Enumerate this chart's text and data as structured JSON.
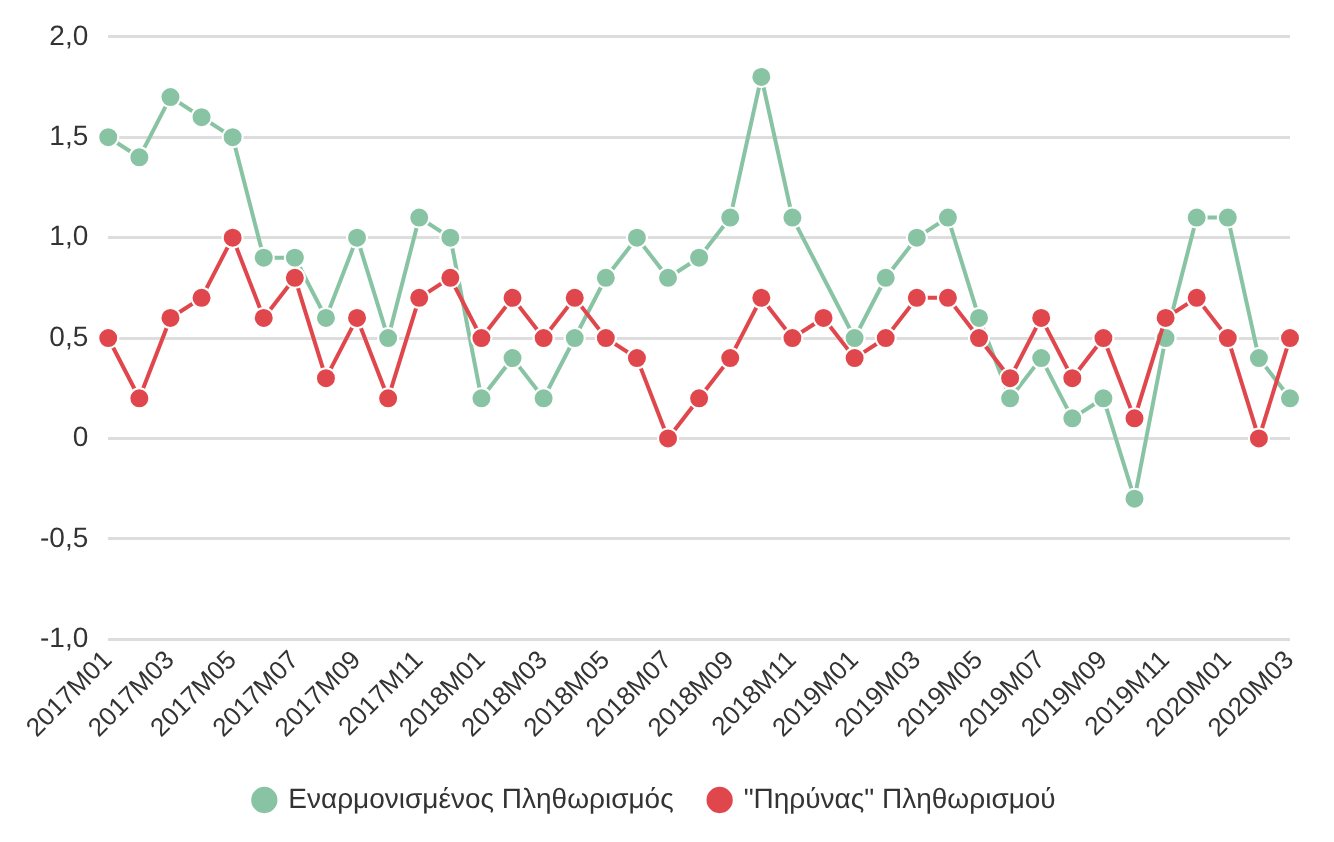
{
  "chart_data": {
    "type": "line",
    "categories": [
      "2017M01",
      null,
      "2017M03",
      null,
      "2017M05",
      null,
      "2017M07",
      null,
      "2017M09",
      null,
      "2017M11",
      null,
      "2018M01",
      null,
      "2018M03",
      null,
      "2018M05",
      null,
      "2018M07",
      null,
      "2018M09",
      null,
      "2018M11",
      null,
      "2019M01",
      null,
      "2019M03",
      null,
      "2019M05",
      null,
      "2019M07",
      null,
      "2019M09",
      null,
      "2019M11",
      null,
      "2020M01",
      null,
      "2020M03"
    ],
    "series": [
      {
        "name": "Εναρμονισμένος Πληθωρισμός",
        "color": "#88c4a4",
        "values": [
          1.5,
          1.4,
          1.7,
          1.6,
          1.5,
          0.9,
          0.9,
          0.6,
          1.0,
          0.5,
          1.1,
          1.0,
          0.2,
          0.4,
          0.2,
          0.5,
          0.8,
          1.0,
          0.8,
          0.9,
          1.1,
          1.8,
          1.1,
          null,
          0.5,
          0.8,
          1.0,
          1.1,
          0.6,
          0.2,
          0.4,
          0.1,
          0.2,
          -0.3,
          0.5,
          1.1,
          1.1,
          0.4,
          0.2
        ]
      },
      {
        "name": "\"Πηρύνας\" Πληθωρισμού",
        "color": "#e0474c",
        "values": [
          0.5,
          0.2,
          0.6,
          0.7,
          1.0,
          0.6,
          0.8,
          0.3,
          0.6,
          0.2,
          0.7,
          0.8,
          0.5,
          0.7,
          0.5,
          0.7,
          0.5,
          0.4,
          0.0,
          0.2,
          0.4,
          0.7,
          0.5,
          0.6,
          0.4,
          0.5,
          0.7,
          0.7,
          0.5,
          0.3,
          0.6,
          0.3,
          0.5,
          0.1,
          0.6,
          0.7,
          0.5,
          0.0,
          0.5
        ]
      }
    ],
    "ylim": [
      -1,
      2
    ],
    "yticks": [
      {
        "value": -1,
        "label": "-1,0"
      },
      {
        "value": -0.5,
        "label": "-0,5"
      },
      0,
      {
        "value": 0.5,
        "label": "0,5"
      },
      {
        "value": 1,
        "label": "1,0"
      },
      {
        "value": 1.5,
        "label": "1,5"
      },
      {
        "value": 2,
        "label": "2,0"
      }
    ],
    "grid": "y",
    "legend": "bottom",
    "marker": "circle",
    "line_style": "solid"
  }
}
